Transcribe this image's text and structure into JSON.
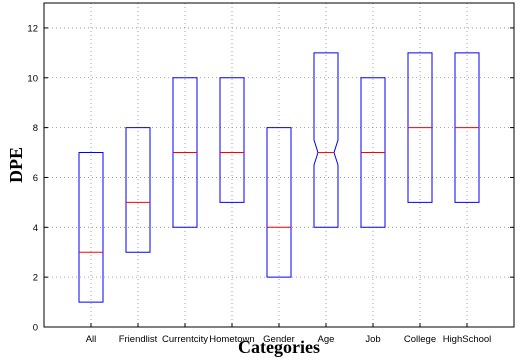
{
  "chart_data": {
    "type": "boxplot",
    "categories": [
      "All",
      "Friendlist",
      "Currentcity",
      "Hometown",
      "Gender",
      "Age",
      "Job",
      "College",
      "HighSchool"
    ],
    "boxes": [
      {
        "q1": 1,
        "median": 3,
        "q3": 7,
        "min": 1,
        "max": 7,
        "notched": false
      },
      {
        "q1": 3,
        "median": 5,
        "q3": 8,
        "min": 3,
        "max": 8,
        "notched": false
      },
      {
        "q1": 4,
        "median": 7,
        "q3": 10,
        "min": 4,
        "max": 10,
        "notched": false
      },
      {
        "q1": 5,
        "median": 7,
        "q3": 10,
        "min": 5,
        "max": 10,
        "notched": false
      },
      {
        "q1": 2,
        "median": 4,
        "q3": 8,
        "min": 2,
        "max": 8,
        "notched": false
      },
      {
        "q1": 4,
        "median": 7,
        "q3": 11,
        "min": 4,
        "max": 11,
        "notched": true
      },
      {
        "q1": 4,
        "median": 7,
        "q3": 10,
        "min": 4,
        "max": 10,
        "notched": false
      },
      {
        "q1": 5,
        "median": 8,
        "q3": 11,
        "min": 5,
        "max": 11,
        "notched": false
      },
      {
        "q1": 5,
        "median": 8,
        "q3": 11,
        "min": 5,
        "max": 11,
        "notched": false
      }
    ],
    "ylim": [
      0,
      13
    ],
    "yticks": [
      0,
      2,
      4,
      6,
      8,
      10,
      12
    ],
    "xlabel": "Categories",
    "ylabel": "DPE",
    "title": "",
    "grid": true,
    "colors": {
      "box": "#0000ff",
      "median": "#ff0000",
      "axis": "#000000",
      "grid": "#8a8a8a"
    }
  }
}
